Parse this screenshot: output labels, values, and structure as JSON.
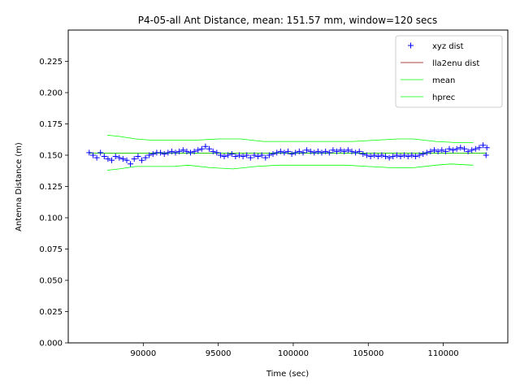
{
  "chart_data": {
    "type": "line",
    "title": "P4-05-all Ant Distance, mean: 151.57 mm, window=120 secs",
    "xlabel": "Time (sec)",
    "ylabel": "Antenna Distance (m)",
    "xlim": [
      85000,
      114300
    ],
    "ylim": [
      0.0,
      0.25
    ],
    "xticks": [
      90000,
      95000,
      100000,
      105000,
      110000
    ],
    "xtick_labels": [
      "90000",
      "95000",
      "100000",
      "105000",
      "110000"
    ],
    "yticks": [
      0.0,
      0.025,
      0.05,
      0.075,
      0.1,
      0.125,
      0.15,
      0.175,
      0.2,
      0.225
    ],
    "ytick_labels": [
      "0.000",
      "0.025",
      "0.050",
      "0.075",
      "0.100",
      "0.125",
      "0.150",
      "0.175",
      "0.200",
      "0.225"
    ],
    "grid": false,
    "legend_position": "upper right",
    "series": [
      {
        "name": "xyz dist",
        "style": "marker",
        "marker": "+",
        "color": "#0000ff",
        "points": [
          [
            86400,
            0.152
          ],
          [
            86650,
            0.15
          ],
          [
            86900,
            0.148
          ],
          [
            87150,
            0.152
          ],
          [
            87400,
            0.149
          ],
          [
            87650,
            0.147
          ],
          [
            87900,
            0.146
          ],
          [
            88150,
            0.149
          ],
          [
            88400,
            0.148
          ],
          [
            88650,
            0.147
          ],
          [
            88900,
            0.146
          ],
          [
            89150,
            0.143
          ],
          [
            89400,
            0.147
          ],
          [
            89650,
            0.149
          ],
          [
            89900,
            0.146
          ],
          [
            90150,
            0.148
          ],
          [
            90400,
            0.15
          ],
          [
            90650,
            0.151
          ],
          [
            90900,
            0.152
          ],
          [
            91150,
            0.152
          ],
          [
            91400,
            0.151
          ],
          [
            91650,
            0.152
          ],
          [
            91900,
            0.153
          ],
          [
            92150,
            0.152
          ],
          [
            92400,
            0.153
          ],
          [
            92650,
            0.154
          ],
          [
            92900,
            0.153
          ],
          [
            93150,
            0.152
          ],
          [
            93400,
            0.153
          ],
          [
            93650,
            0.154
          ],
          [
            93900,
            0.155
          ],
          [
            94150,
            0.157
          ],
          [
            94400,
            0.155
          ],
          [
            94650,
            0.153
          ],
          [
            94900,
            0.152
          ],
          [
            95150,
            0.15
          ],
          [
            95400,
            0.149
          ],
          [
            95650,
            0.15
          ],
          [
            95900,
            0.151
          ],
          [
            96150,
            0.149
          ],
          [
            96400,
            0.15
          ],
          [
            96650,
            0.149
          ],
          [
            96900,
            0.15
          ],
          [
            97150,
            0.148
          ],
          [
            97400,
            0.15
          ],
          [
            97650,
            0.149
          ],
          [
            97900,
            0.15
          ],
          [
            98150,
            0.148
          ],
          [
            98400,
            0.15
          ],
          [
            98650,
            0.151
          ],
          [
            98900,
            0.152
          ],
          [
            99150,
            0.153
          ],
          [
            99400,
            0.152
          ],
          [
            99650,
            0.153
          ],
          [
            99900,
            0.151
          ],
          [
            100150,
            0.152
          ],
          [
            100400,
            0.153
          ],
          [
            100650,
            0.152
          ],
          [
            100900,
            0.154
          ],
          [
            101150,
            0.153
          ],
          [
            101400,
            0.152
          ],
          [
            101650,
            0.153
          ],
          [
            101900,
            0.152
          ],
          [
            102150,
            0.153
          ],
          [
            102400,
            0.152
          ],
          [
            102650,
            0.154
          ],
          [
            102900,
            0.153
          ],
          [
            103150,
            0.154
          ],
          [
            103400,
            0.153
          ],
          [
            103650,
            0.154
          ],
          [
            103900,
            0.153
          ],
          [
            104150,
            0.152
          ],
          [
            104400,
            0.153
          ],
          [
            104650,
            0.151
          ],
          [
            104900,
            0.15
          ],
          [
            105150,
            0.149
          ],
          [
            105400,
            0.15
          ],
          [
            105650,
            0.149
          ],
          [
            105900,
            0.15
          ],
          [
            106150,
            0.149
          ],
          [
            106400,
            0.148
          ],
          [
            106650,
            0.149
          ],
          [
            106900,
            0.15
          ],
          [
            107150,
            0.149
          ],
          [
            107400,
            0.15
          ],
          [
            107650,
            0.149
          ],
          [
            107900,
            0.15
          ],
          [
            108150,
            0.149
          ],
          [
            108400,
            0.15
          ],
          [
            108650,
            0.151
          ],
          [
            108900,
            0.152
          ],
          [
            109150,
            0.153
          ],
          [
            109400,
            0.154
          ],
          [
            109650,
            0.153
          ],
          [
            109900,
            0.154
          ],
          [
            110150,
            0.153
          ],
          [
            110400,
            0.155
          ],
          [
            110650,
            0.154
          ],
          [
            110900,
            0.155
          ],
          [
            111150,
            0.156
          ],
          [
            111400,
            0.155
          ],
          [
            111650,
            0.153
          ],
          [
            111900,
            0.154
          ],
          [
            112150,
            0.155
          ],
          [
            112400,
            0.156
          ],
          [
            112650,
            0.158
          ],
          [
            112850,
            0.15
          ],
          [
            112900,
            0.156
          ]
        ]
      },
      {
        "name": "lla2enu dist",
        "style": "line",
        "color": "#8b0000",
        "points": [
          [
            86400,
            0.1516
          ],
          [
            112900,
            0.1516
          ]
        ]
      },
      {
        "name": "mean",
        "style": "line",
        "color": "#00ff00",
        "points": [
          [
            86400,
            0.1516
          ],
          [
            112900,
            0.1516
          ]
        ]
      },
      {
        "name": "hprec",
        "style": "band",
        "color": "#00ff00",
        "upper": [
          [
            87600,
            0.166
          ],
          [
            88400,
            0.165
          ],
          [
            89500,
            0.163
          ],
          [
            90500,
            0.162
          ],
          [
            92000,
            0.162
          ],
          [
            93500,
            0.162
          ],
          [
            95000,
            0.163
          ],
          [
            96500,
            0.163
          ],
          [
            98000,
            0.161
          ],
          [
            99500,
            0.161
          ],
          [
            101000,
            0.161
          ],
          [
            102500,
            0.161
          ],
          [
            104000,
            0.161
          ],
          [
            105500,
            0.162
          ],
          [
            107000,
            0.163
          ],
          [
            108000,
            0.163
          ],
          [
            109500,
            0.161
          ],
          [
            111000,
            0.16
          ],
          [
            112000,
            0.16
          ]
        ],
        "lower": [
          [
            87600,
            0.138
          ],
          [
            88400,
            0.139
          ],
          [
            89500,
            0.141
          ],
          [
            90500,
            0.141
          ],
          [
            92000,
            0.141
          ],
          [
            93000,
            0.142
          ],
          [
            94500,
            0.14
          ],
          [
            96000,
            0.139
          ],
          [
            97500,
            0.141
          ],
          [
            99000,
            0.142
          ],
          [
            100500,
            0.142
          ],
          [
            102000,
            0.142
          ],
          [
            103500,
            0.142
          ],
          [
            105000,
            0.141
          ],
          [
            106500,
            0.14
          ],
          [
            108000,
            0.14
          ],
          [
            109500,
            0.142
          ],
          [
            110500,
            0.143
          ],
          [
            112000,
            0.142
          ]
        ]
      }
    ]
  }
}
